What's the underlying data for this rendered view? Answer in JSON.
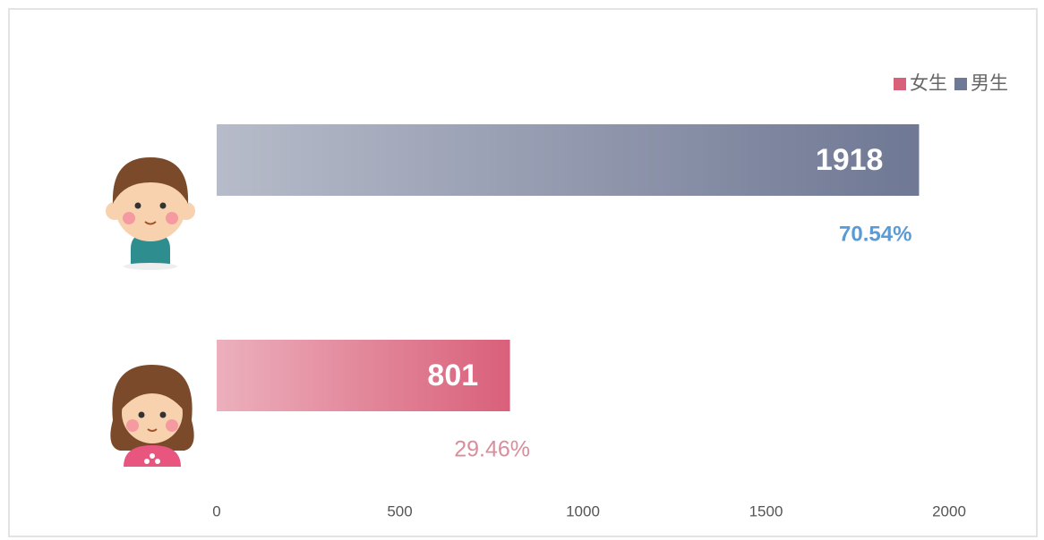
{
  "chart_data": {
    "type": "hbar",
    "series": [
      {
        "name": "女生",
        "color": "#d9607a",
        "values": [
          801
        ],
        "share_label": "29.46%"
      },
      {
        "name": "男生",
        "color": "#6f7894",
        "values": [
          1918
        ],
        "share_label": "70.54%"
      }
    ],
    "xlim": [
      0,
      2000
    ],
    "xticks": [
      0,
      500,
      1000,
      1500,
      2000
    ],
    "grid": false,
    "legend": "top-right"
  }
}
